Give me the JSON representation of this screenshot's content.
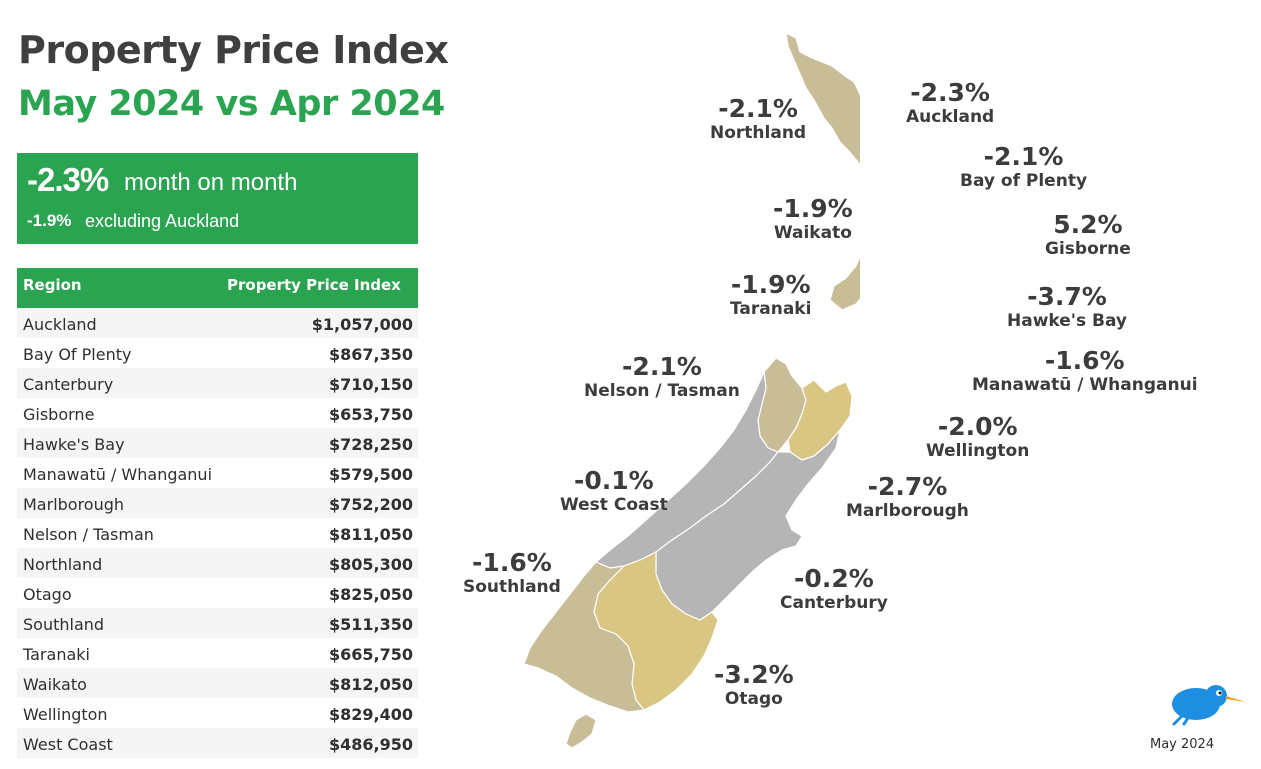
{
  "header": {
    "title": "Property Price Index",
    "subtitle": "May 2024 vs Apr 2024"
  },
  "summary": {
    "headline_value": "-2.3%",
    "headline_text": "month on month",
    "secondary_value": "-1.9%",
    "secondary_text": "excluding Auckland"
  },
  "table": {
    "col_region": "Region",
    "col_index": "Property Price Index",
    "rows": [
      {
        "region": "Auckland",
        "value": "$1,057,000"
      },
      {
        "region": "Bay Of Plenty",
        "value": "$867,350"
      },
      {
        "region": "Canterbury",
        "value": "$710,150"
      },
      {
        "region": "Gisborne",
        "value": "$653,750"
      },
      {
        "region": "Hawke's Bay",
        "value": "$728,250"
      },
      {
        "region": "Manawatū / Whanganui",
        "value": "$579,500"
      },
      {
        "region": "Marlborough",
        "value": "$752,200"
      },
      {
        "region": "Nelson / Tasman",
        "value": "$811,050"
      },
      {
        "region": "Northland",
        "value": "$805,300"
      },
      {
        "region": "Otago",
        "value": "$825,050"
      },
      {
        "region": "Southland",
        "value": "$511,350"
      },
      {
        "region": "Taranaki",
        "value": "$665,750"
      },
      {
        "region": "Waikato",
        "value": "$812,050"
      },
      {
        "region": "Wellington",
        "value": "$829,400"
      },
      {
        "region": "West Coast",
        "value": "$486,950"
      }
    ]
  },
  "map_labels": {
    "northland": {
      "pct": "-2.1%",
      "name": "Northland"
    },
    "auckland": {
      "pct": "-2.3%",
      "name": "Auckland"
    },
    "bay_of_plenty": {
      "pct": "-2.1%",
      "name": "Bay of Plenty"
    },
    "waikato": {
      "pct": "-1.9%",
      "name": "Waikato"
    },
    "gisborne": {
      "pct": "5.2%",
      "name": "Gisborne"
    },
    "taranaki": {
      "pct": "-1.9%",
      "name": "Taranaki"
    },
    "hawkes_bay": {
      "pct": "-3.7%",
      "name": "Hawke's Bay"
    },
    "nelson_tasman": {
      "pct": "-2.1%",
      "name": "Nelson / Tasman"
    },
    "manawatu": {
      "pct": "-1.6%",
      "name": "Manawatū / Whanganui"
    },
    "wellington": {
      "pct": "-2.0%",
      "name": "Wellington"
    },
    "west_coast": {
      "pct": "-0.1%",
      "name": "West Coast"
    },
    "marlborough": {
      "pct": "-2.7%",
      "name": "Marlborough"
    },
    "southland": {
      "pct": "-1.6%",
      "name": "Southland"
    },
    "canterbury": {
      "pct": "-0.2%",
      "name": "Canterbury"
    },
    "otago": {
      "pct": "-3.2%",
      "name": "Otago"
    }
  },
  "colors": {
    "accent_green": "#2ba452",
    "region_tan": "#c9bd98",
    "region_gold": "#d9c682",
    "region_grey": "#b5b5b5",
    "kiwi_blue": "#1e8fe0"
  },
  "footer": {
    "date": "May 2024"
  }
}
